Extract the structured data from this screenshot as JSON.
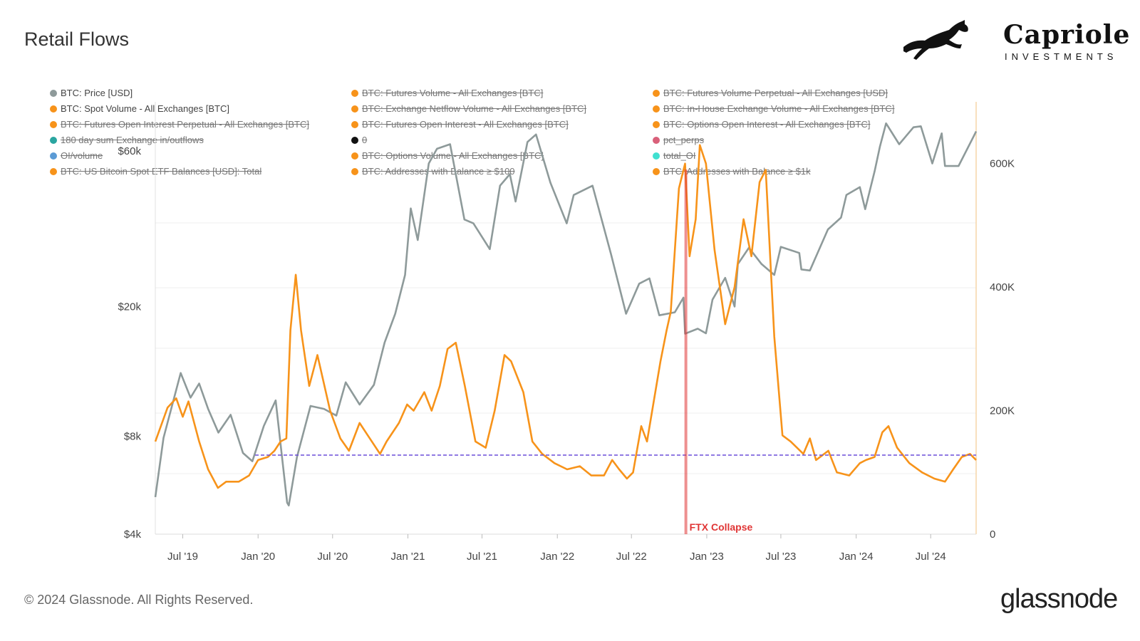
{
  "header": {
    "title": "Retail Flows"
  },
  "brand": {
    "name": "Capriole",
    "sub": "INVESTMENTS",
    "logo_icon": "horse-icon"
  },
  "footer": {
    "copyright": "© 2024 Glassnode. All Rights Reserved.",
    "logo": "glassnode"
  },
  "legend": [
    {
      "label": "BTC: Price [USD]",
      "color": "#8e9a9a",
      "active": true
    },
    {
      "label": "BTC: Futures Volume - All Exchanges [BTC]",
      "color": "#f7931a",
      "active": false
    },
    {
      "label": "BTC: Futures Volume Perpetual - All Exchanges [USD]",
      "color": "#f7931a",
      "active": false
    },
    {
      "label": "BTC: Spot Volume - All Exchanges [BTC]",
      "color": "#f7931a",
      "active": true
    },
    {
      "label": "BTC: Exchange Netflow Volume - All Exchanges [BTC]",
      "color": "#f7931a",
      "active": false
    },
    {
      "label": "BTC: In-House Exchange Volume - All Exchanges [BTC]",
      "color": "#f7931a",
      "active": false
    },
    {
      "label": "BTC: Futures Open Interest Perpetual - All Exchanges [BTC]",
      "color": "#f7931a",
      "active": false
    },
    {
      "label": "BTC: Futures Open Interest - All Exchanges [BTC]",
      "color": "#f7931a",
      "active": false
    },
    {
      "label": "BTC: Options Open Interest - All Exchanges [BTC]",
      "color": "#f7931a",
      "active": false
    },
    {
      "label": "180 day sum Exchange in/outflows",
      "color": "#2aa5a0",
      "active": false
    },
    {
      "label": "0",
      "color": "#111111",
      "active": false
    },
    {
      "label": "pct_perps",
      "color": "#d9607a",
      "active": false
    },
    {
      "label": "OI/volume",
      "color": "#5b9bd5",
      "active": false
    },
    {
      "label": "BTC: Options Volume - All Exchanges [BTC]",
      "color": "#f7931a",
      "active": false
    },
    {
      "label": "total_OI",
      "color": "#40e0d0",
      "active": false
    },
    {
      "label": "BTC: US Bitcoin Spot ETF Balances [USD]: Total",
      "color": "#f7931a",
      "active": false
    },
    {
      "label": "BTC: Addresses with Balance ≥ $100",
      "color": "#f7931a",
      "active": false
    },
    {
      "label": "BTC: Addresses with Balance ≥ $1k",
      "color": "#f7931a",
      "active": false
    }
  ],
  "chart_data": {
    "type": "line",
    "x_ticks": [
      "Jul '19",
      "Jan '20",
      "Jul '20",
      "Jan '21",
      "Jul '21",
      "Jan '22",
      "Jul '22",
      "Jan '23",
      "Jul '23",
      "Jan '24",
      "Jul '24"
    ],
    "y_left": {
      "scale": "log",
      "ticks": [
        "$4k",
        "$8k",
        "$20k",
        "$60k"
      ],
      "tick_values": [
        4000,
        8000,
        20000,
        60000
      ],
      "range": [
        4000,
        85000
      ]
    },
    "y_right": {
      "scale": "linear",
      "ticks": [
        "0",
        "200K",
        "400K",
        "600K"
      ],
      "tick_values": [
        0,
        200000,
        400000,
        600000
      ],
      "range": [
        0,
        700000
      ]
    },
    "x_range": [
      "2019-04-25",
      "2024-10-20"
    ],
    "series": [
      {
        "name": "BTC: Price [USD]",
        "axis": "left",
        "color": "#8e9a9a",
        "points": [
          [
            "2019-04-25",
            5200
          ],
          [
            "2019-05-15",
            7900
          ],
          [
            "2019-06-26",
            12500
          ],
          [
            "2019-07-20",
            10500
          ],
          [
            "2019-08-10",
            11600
          ],
          [
            "2019-09-01",
            9700
          ],
          [
            "2019-09-26",
            8200
          ],
          [
            "2019-10-26",
            9300
          ],
          [
            "2019-11-25",
            7100
          ],
          [
            "2019-12-18",
            6700
          ],
          [
            "2020-01-15",
            8600
          ],
          [
            "2020-02-13",
            10300
          ],
          [
            "2020-03-12",
            5000
          ],
          [
            "2020-03-16",
            4900
          ],
          [
            "2020-04-05",
            6900
          ],
          [
            "2020-05-08",
            9900
          ],
          [
            "2020-06-10",
            9700
          ],
          [
            "2020-07-10",
            9250
          ],
          [
            "2020-08-02",
            11700
          ],
          [
            "2020-09-05",
            10000
          ],
          [
            "2020-10-10",
            11500
          ],
          [
            "2020-11-05",
            15500
          ],
          [
            "2020-12-01",
            19000
          ],
          [
            "2020-12-25",
            25000
          ],
          [
            "2021-01-08",
            40000
          ],
          [
            "2021-01-25",
            32000
          ],
          [
            "2021-02-21",
            55000
          ],
          [
            "2021-03-13",
            61000
          ],
          [
            "2021-04-14",
            63000
          ],
          [
            "2021-05-19",
            37000
          ],
          [
            "2021-06-10",
            36000
          ],
          [
            "2021-07-20",
            30000
          ],
          [
            "2021-08-14",
            47000
          ],
          [
            "2021-09-07",
            51000
          ],
          [
            "2021-09-21",
            42000
          ],
          [
            "2021-10-20",
            64000
          ],
          [
            "2021-11-10",
            67500
          ],
          [
            "2021-12-15",
            48000
          ],
          [
            "2022-01-24",
            36000
          ],
          [
            "2022-02-10",
            44000
          ],
          [
            "2022-03-28",
            47000
          ],
          [
            "2022-05-12",
            29000
          ],
          [
            "2022-06-18",
            19000
          ],
          [
            "2022-07-20",
            23500
          ],
          [
            "2022-08-14",
            24400
          ],
          [
            "2022-09-07",
            18800
          ],
          [
            "2022-10-15",
            19200
          ],
          [
            "2022-11-05",
            21300
          ],
          [
            "2022-11-09",
            16500
          ],
          [
            "2022-12-10",
            17100
          ],
          [
            "2022-12-30",
            16550
          ],
          [
            "2023-01-15",
            21000
          ],
          [
            "2023-02-15",
            24500
          ],
          [
            "2023-03-10",
            20000
          ],
          [
            "2023-03-18",
            27000
          ],
          [
            "2023-04-14",
            30300
          ],
          [
            "2023-05-15",
            27000
          ],
          [
            "2023-06-15",
            25000
          ],
          [
            "2023-07-01",
            30500
          ],
          [
            "2023-08-15",
            29200
          ],
          [
            "2023-08-20",
            26000
          ],
          [
            "2023-09-10",
            25800
          ],
          [
            "2023-10-24",
            34500
          ],
          [
            "2023-11-25",
            37500
          ],
          [
            "2023-12-08",
            44000
          ],
          [
            "2024-01-10",
            46500
          ],
          [
            "2024-01-23",
            39800
          ],
          [
            "2024-02-15",
            52000
          ],
          [
            "2024-02-28",
            62000
          ],
          [
            "2024-03-14",
            73000
          ],
          [
            "2024-04-15",
            63000
          ],
          [
            "2024-05-20",
            71000
          ],
          [
            "2024-06-07",
            71500
          ],
          [
            "2024-07-05",
            55000
          ],
          [
            "2024-07-28",
            68000
          ],
          [
            "2024-08-05",
            54000
          ],
          [
            "2024-09-07",
            54000
          ],
          [
            "2024-10-15",
            67000
          ],
          [
            "2024-10-20",
            69000
          ]
        ]
      },
      {
        "name": "BTC: Spot Volume - All Exchanges [BTC]",
        "axis": "right",
        "color": "#f7931a",
        "points": [
          [
            "2019-04-25",
            150000
          ],
          [
            "2019-05-25",
            205000
          ],
          [
            "2019-06-15",
            220000
          ],
          [
            "2019-07-01",
            190000
          ],
          [
            "2019-07-15",
            215000
          ],
          [
            "2019-08-10",
            150000
          ],
          [
            "2019-09-01",
            105000
          ],
          [
            "2019-09-25",
            75000
          ],
          [
            "2019-10-15",
            85000
          ],
          [
            "2019-11-15",
            85000
          ],
          [
            "2019-12-10",
            95000
          ],
          [
            "2020-01-01",
            120000
          ],
          [
            "2020-01-25",
            125000
          ],
          [
            "2020-02-10",
            135000
          ],
          [
            "2020-02-25",
            150000
          ],
          [
            "2020-03-10",
            155000
          ],
          [
            "2020-03-20",
            330000
          ],
          [
            "2020-04-02",
            420000
          ],
          [
            "2020-04-15",
            330000
          ],
          [
            "2020-05-05",
            240000
          ],
          [
            "2020-05-25",
            290000
          ],
          [
            "2020-06-25",
            200000
          ],
          [
            "2020-07-20",
            155000
          ],
          [
            "2020-08-10",
            135000
          ],
          [
            "2020-09-05",
            180000
          ],
          [
            "2020-09-25",
            160000
          ],
          [
            "2020-10-25",
            130000
          ],
          [
            "2020-11-10",
            150000
          ],
          [
            "2020-12-10",
            180000
          ],
          [
            "2020-12-30",
            210000
          ],
          [
            "2021-01-15",
            200000
          ],
          [
            "2021-02-10",
            230000
          ],
          [
            "2021-02-28",
            200000
          ],
          [
            "2021-03-20",
            240000
          ],
          [
            "2021-04-08",
            300000
          ],
          [
            "2021-04-28",
            310000
          ],
          [
            "2021-05-20",
            240000
          ],
          [
            "2021-06-15",
            150000
          ],
          [
            "2021-07-10",
            140000
          ],
          [
            "2021-08-01",
            200000
          ],
          [
            "2021-08-25",
            290000
          ],
          [
            "2021-09-10",
            280000
          ],
          [
            "2021-10-10",
            230000
          ],
          [
            "2021-11-01",
            150000
          ],
          [
            "2021-11-25",
            130000
          ],
          [
            "2021-12-25",
            115000
          ],
          [
            "2022-01-25",
            105000
          ],
          [
            "2022-02-25",
            110000
          ],
          [
            "2022-03-25",
            95000
          ],
          [
            "2022-04-25",
            95000
          ],
          [
            "2022-05-15",
            120000
          ],
          [
            "2022-06-01",
            105000
          ],
          [
            "2022-06-20",
            90000
          ],
          [
            "2022-07-05",
            100000
          ],
          [
            "2022-07-25",
            175000
          ],
          [
            "2022-08-08",
            150000
          ],
          [
            "2022-09-10",
            280000
          ],
          [
            "2022-09-25",
            330000
          ],
          [
            "2022-10-05",
            360000
          ],
          [
            "2022-10-25",
            560000
          ],
          [
            "2022-11-09",
            600000
          ],
          [
            "2022-11-20",
            450000
          ],
          [
            "2022-12-05",
            510000
          ],
          [
            "2022-12-15",
            630000
          ],
          [
            "2022-12-30",
            600000
          ],
          [
            "2023-01-20",
            460000
          ],
          [
            "2023-02-15",
            340000
          ],
          [
            "2023-03-10",
            400000
          ],
          [
            "2023-04-01",
            510000
          ],
          [
            "2023-04-20",
            450000
          ],
          [
            "2023-05-10",
            570000
          ],
          [
            "2023-05-25",
            590000
          ],
          [
            "2023-06-15",
            320000
          ],
          [
            "2023-07-05",
            160000
          ],
          [
            "2023-07-25",
            150000
          ],
          [
            "2023-08-25",
            130000
          ],
          [
            "2023-09-10",
            155000
          ],
          [
            "2023-09-25",
            120000
          ],
          [
            "2023-10-25",
            135000
          ],
          [
            "2023-11-15",
            100000
          ],
          [
            "2023-12-15",
            95000
          ],
          [
            "2024-01-10",
            115000
          ],
          [
            "2024-01-25",
            120000
          ],
          [
            "2024-02-15",
            125000
          ],
          [
            "2024-03-05",
            165000
          ],
          [
            "2024-03-20",
            175000
          ],
          [
            "2024-04-10",
            140000
          ],
          [
            "2024-05-10",
            115000
          ],
          [
            "2024-06-10",
            100000
          ],
          [
            "2024-07-10",
            90000
          ],
          [
            "2024-08-05",
            85000
          ],
          [
            "2024-08-25",
            105000
          ],
          [
            "2024-09-15",
            125000
          ],
          [
            "2024-10-05",
            130000
          ],
          [
            "2024-10-20",
            120000
          ]
        ]
      }
    ],
    "reference_lines": [
      {
        "axis": "right",
        "value": 128000,
        "style": "dashed",
        "color": "#6b4fd8"
      }
    ],
    "annotations": [
      {
        "label": "FTX Collapse",
        "date": "2022-11-11",
        "color": "#e03535"
      }
    ],
    "grid": true,
    "legend_position": "top"
  }
}
